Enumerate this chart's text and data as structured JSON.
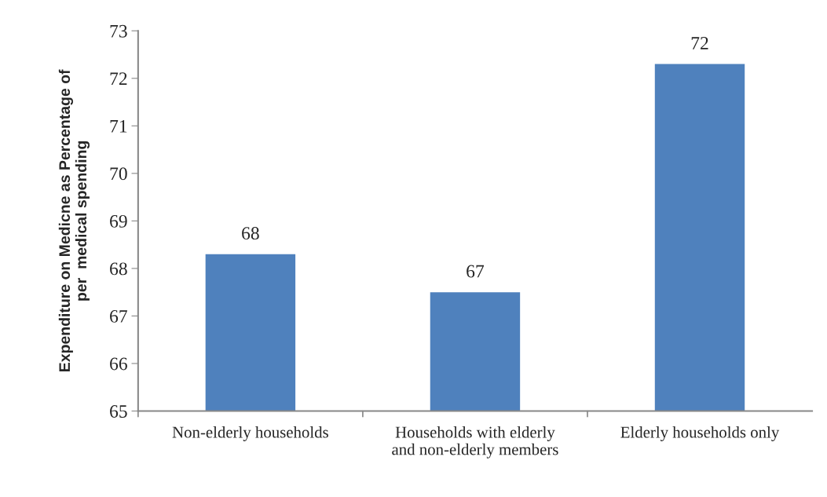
{
  "chart_data": {
    "type": "bar",
    "ylabel": "Expenditure on Medicne as Percentage of\nper  medical spending",
    "categories": [
      "Non-elderly households",
      "Households with elderly\nand non-elderly members",
      "Elderly households only"
    ],
    "values": [
      68.3,
      67.5,
      72.3
    ],
    "value_labels": [
      "68",
      "67",
      "72"
    ],
    "color": "#4f81bd",
    "ylim": [
      65,
      73
    ],
    "yticks": [
      65,
      66,
      67,
      68,
      69,
      70,
      71,
      72,
      73
    ],
    "grid": false,
    "legend": false
  }
}
